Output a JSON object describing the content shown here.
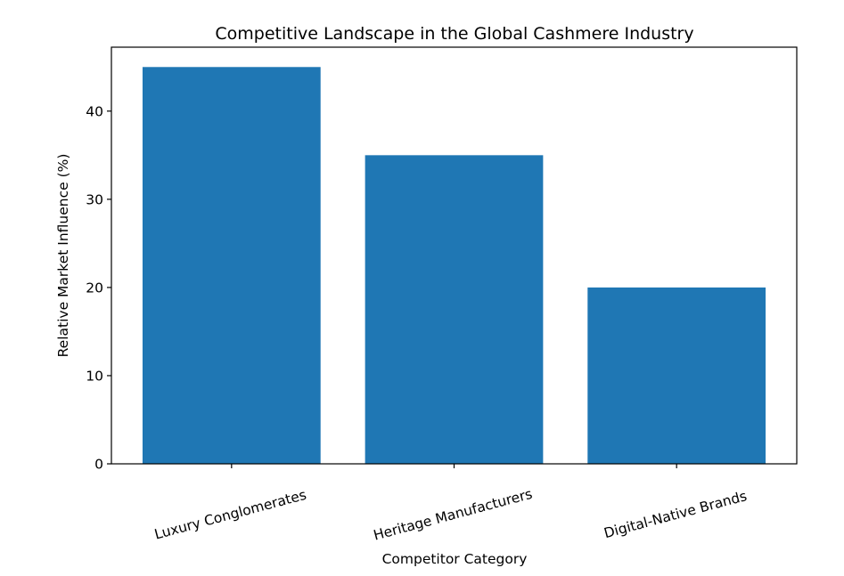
{
  "chart_data": {
    "type": "bar",
    "title": "Competitive Landscape in the Global Cashmere Industry",
    "xlabel": "Competitor Category",
    "ylabel": "Relative Market Influence (%)",
    "categories": [
      "Luxury Conglomerates",
      "Heritage Manufacturers",
      "Digital-Native Brands"
    ],
    "values": [
      45,
      35,
      20
    ],
    "ylim": [
      0,
      47.25
    ],
    "yticks": [
      0,
      10,
      20,
      30,
      40
    ],
    "bar_color": "#1f77b4",
    "grid": false,
    "legend": "none"
  }
}
